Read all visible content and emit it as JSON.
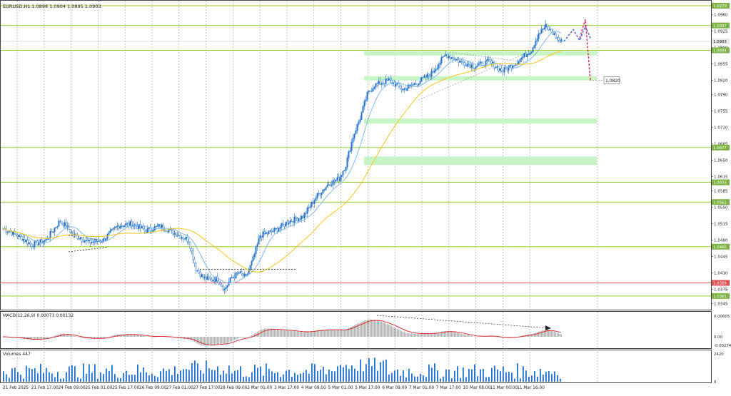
{
  "header": {
    "title": "EURUSD,H1  1.0898 1.0904 1.0895 1.0903"
  },
  "colors": {
    "up": "#1e6fd0",
    "down": "#1e6fd0",
    "grid": "#9a9a9a",
    "level": "#9acd32",
    "level_label": "#7cb342",
    "red_level": "#e05050",
    "ma_fast": "#7fb8e8",
    "ma_slow": "#f5c518",
    "zone": "#c8f5c8",
    "macd_hist": "#b0b0b0",
    "macd_signal": "#e02020",
    "volume": "#1e6fd0",
    "projection_blue": "#4a6fd0",
    "projection_red": "#e0204a"
  },
  "price_axis": {
    "ticks": [
      "1.0960",
      "1.0925",
      "1.0890",
      "1.0855",
      "1.0820",
      "1.0790",
      "1.0755",
      "1.0720",
      "1.0685",
      "1.0650",
      "1.0615",
      "1.0585",
      "1.0550",
      "1.0515",
      "1.0480",
      "1.0445",
      "1.0410",
      "1.0375",
      "1.0345"
    ],
    "level_labels": [
      "1.0979",
      "1.0937",
      "1.0903",
      "1.0884",
      "1.0677",
      "1.0603",
      "1.0561",
      "1.0466",
      "1.0389",
      "1.0361"
    ],
    "current_price": "1.0903",
    "target_label": "1.0820"
  },
  "time_axis": {
    "labels": [
      "21 Feb 2025",
      "21 Feb 17:00",
      "24 Feb 09:00",
      "25 Feb 01:00",
      "25 Feb 17:00",
      "26 Feb 09:00",
      "27 Feb 01:00",
      "27 Feb 17:00",
      "28 Feb 09:00",
      "3 Mar 01:00",
      "3 Mar 17:00",
      "4 Mar 09:00",
      "5 Mar 01:00",
      "5 Mar 17:00",
      "6 Mar 09:00",
      "7 Mar 01:00",
      "7 Mar 17:00",
      "10 Mar 08:00",
      "11 Mar 00:00",
      "11 Mar 16:00"
    ]
  },
  "macd": {
    "label": "MACD(12,26,9) 0.00073 0.00132",
    "ticks": [
      "0.00605",
      "0.00",
      "-0.00274"
    ]
  },
  "volumes": {
    "label": "Volumes 447",
    "ticks": [
      "2420",
      "0"
    ]
  },
  "chart_data": {
    "type": "candlestick",
    "symbol": "EURUSD",
    "timeframe": "H1",
    "ylim": [
      1.0335,
      1.0985
    ],
    "close_path": [
      [
        0,
        1.0505
      ],
      [
        10,
        1.049
      ],
      [
        20,
        1.047
      ],
      [
        30,
        1.048
      ],
      [
        40,
        1.0522
      ],
      [
        50,
        1.049
      ],
      [
        60,
        1.0475
      ],
      [
        70,
        1.048
      ],
      [
        80,
        1.051
      ],
      [
        90,
        1.0515
      ],
      [
        100,
        1.05
      ],
      [
        110,
        1.051
      ],
      [
        120,
        1.0495
      ],
      [
        130,
        1.048
      ],
      [
        135,
        1.042
      ],
      [
        140,
        1.04
      ],
      [
        145,
        1.0395
      ],
      [
        150,
        1.0398
      ],
      [
        155,
        1.0375
      ],
      [
        160,
        1.04
      ],
      [
        165,
        1.041
      ],
      [
        170,
        1.04
      ],
      [
        175,
        1.044
      ],
      [
        180,
        1.049
      ],
      [
        190,
        1.05
      ],
      [
        200,
        1.052
      ],
      [
        210,
        1.053
      ],
      [
        220,
        1.0575
      ],
      [
        228,
        1.06
      ],
      [
        235,
        1.061
      ],
      [
        240,
        1.064
      ],
      [
        245,
        1.07
      ],
      [
        250,
        1.074
      ],
      [
        255,
        1.079
      ],
      [
        260,
        1.081
      ],
      [
        270,
        1.082
      ],
      [
        280,
        1.08
      ],
      [
        290,
        1.0815
      ],
      [
        300,
        1.0835
      ],
      [
        310,
        1.0875
      ],
      [
        320,
        1.086
      ],
      [
        330,
        1.085
      ],
      [
        340,
        1.086
      ],
      [
        350,
        1.084
      ],
      [
        360,
        1.086
      ],
      [
        370,
        1.0885
      ],
      [
        375,
        1.092
      ],
      [
        380,
        1.0935
      ],
      [
        385,
        1.092
      ],
      [
        390,
        1.0903
      ]
    ],
    "horizontal_levels": [
      1.0979,
      1.0937,
      1.0884,
      1.0677,
      1.0603,
      1.0561,
      1.0466,
      1.0361
    ],
    "red_level": 1.0389,
    "demand_zones": [
      [
        1.0873,
        1.0882
      ],
      [
        1.0822,
        1.0829
      ],
      [
        1.0728,
        1.0739
      ],
      [
        1.064,
        1.0658
      ]
    ],
    "projection_blue": [
      1.0903,
      1.0928,
      1.0905,
      1.0935,
      1.091
    ],
    "projection_red": [
      1.091,
      1.095,
      1.082
    ],
    "target": 1.082,
    "macd_hist_peak": 0.00605,
    "volume_max": 2420
  }
}
